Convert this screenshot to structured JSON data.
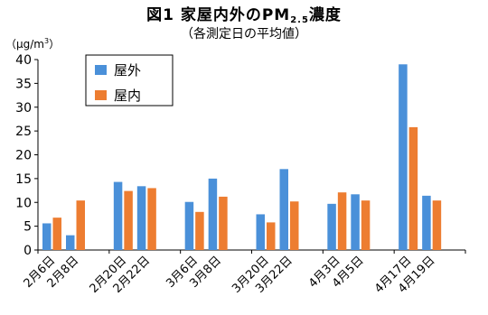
{
  "chart_data": {
    "type": "bar",
    "title_main": "図1 家屋内外のPM",
    "title_sub_index": "2.5",
    "title_suffix": "濃度",
    "subtitle": "（各測定日の平均値）",
    "unit_main": "（μg/m",
    "unit_sup": "3",
    "unit_close": "）",
    "ylim": [
      0,
      40
    ],
    "yticks": [
      0,
      5,
      10,
      15,
      20,
      25,
      30,
      35,
      40
    ],
    "legend_position": "top-left",
    "categories": [
      "2月6日",
      "2月8日",
      "2月20日",
      "2月22日",
      "3月6日",
      "3月8日",
      "3月20日",
      "3月22日",
      "4月3日",
      "4月5日",
      "4月17日",
      "4月19日"
    ],
    "series": [
      {
        "name": "屋外",
        "color": "#4a90d9",
        "values": [
          5.6,
          3.1,
          14.3,
          13.4,
          10.1,
          15.0,
          7.5,
          17.0,
          9.7,
          11.7,
          39.0,
          11.4
        ]
      },
      {
        "name": "屋内",
        "color": "#ed7d31",
        "values": [
          6.8,
          10.4,
          12.4,
          13.0,
          8.0,
          11.2,
          5.8,
          10.2,
          12.1,
          10.4,
          25.8,
          10.4
        ]
      }
    ]
  }
}
